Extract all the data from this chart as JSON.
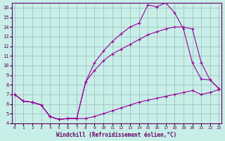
{
  "xlabel": "Windchill (Refroidissement éolien,°C)",
  "bg_color": "#c8eee8",
  "line_color": "#990099",
  "grid_color": "#99bbbb",
  "xlim": [
    0,
    23
  ],
  "ylim": [
    4,
    16.5
  ],
  "xticks": [
    0,
    1,
    2,
    3,
    4,
    5,
    6,
    7,
    8,
    9,
    10,
    11,
    12,
    13,
    14,
    15,
    16,
    17,
    18,
    19,
    20,
    21,
    22,
    23
  ],
  "yticks": [
    4,
    5,
    6,
    7,
    8,
    9,
    10,
    11,
    12,
    13,
    14,
    15,
    16
  ],
  "line1_x": [
    0,
    1,
    2,
    3,
    4,
    5,
    6,
    7,
    8,
    9,
    10,
    11,
    12,
    13,
    14,
    15,
    16,
    17,
    18,
    19,
    20,
    21,
    22,
    23
  ],
  "line1_y": [
    7.0,
    6.3,
    6.2,
    5.9,
    4.7,
    4.4,
    4.5,
    4.5,
    4.5,
    4.7,
    5.0,
    5.3,
    5.6,
    5.9,
    6.2,
    6.4,
    6.6,
    6.8,
    7.0,
    7.2,
    7.4,
    7.0,
    7.2,
    7.5
  ],
  "line2_x": [
    0,
    1,
    2,
    3,
    4,
    5,
    6,
    7,
    8,
    9,
    10,
    11,
    12,
    13,
    14,
    15,
    16,
    17,
    18,
    19,
    20,
    21,
    22,
    23
  ],
  "line2_y": [
    7.0,
    6.3,
    6.2,
    5.9,
    4.7,
    4.4,
    4.5,
    4.5,
    8.3,
    9.5,
    10.5,
    11.2,
    11.7,
    12.2,
    12.7,
    13.2,
    13.5,
    13.8,
    14.0,
    14.0,
    13.8,
    10.3,
    8.5,
    7.6
  ],
  "line3_x": [
    0,
    1,
    2,
    3,
    4,
    5,
    6,
    7,
    8,
    9,
    10,
    11,
    12,
    13,
    14,
    15,
    16,
    17,
    18,
    19,
    20,
    21,
    22,
    23
  ],
  "line3_y": [
    7.0,
    6.3,
    6.2,
    5.9,
    4.7,
    4.4,
    4.5,
    4.5,
    8.3,
    10.3,
    11.5,
    12.5,
    13.3,
    14.0,
    14.4,
    16.3,
    16.1,
    16.5,
    15.5,
    13.8,
    10.3,
    8.6,
    8.5,
    7.6
  ]
}
